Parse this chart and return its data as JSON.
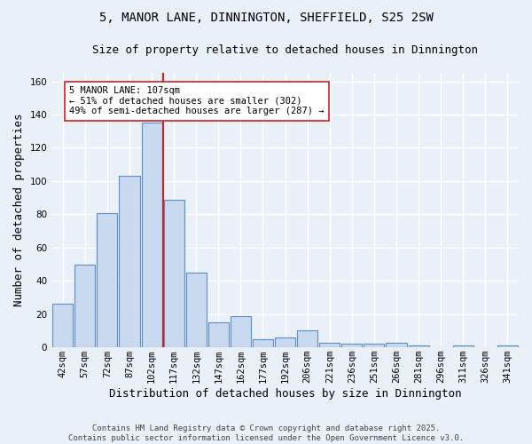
{
  "title_line1": "5, MANOR LANE, DINNINGTON, SHEFFIELD, S25 2SW",
  "title_line2": "Size of property relative to detached houses in Dinnington",
  "xlabel": "Distribution of detached houses by size in Dinnington",
  "ylabel": "Number of detached properties",
  "categories": [
    "42sqm",
    "57sqm",
    "72sqm",
    "87sqm",
    "102sqm",
    "117sqm",
    "132sqm",
    "147sqm",
    "162sqm",
    "177sqm",
    "192sqm",
    "206sqm",
    "221sqm",
    "236sqm",
    "251sqm",
    "266sqm",
    "281sqm",
    "296sqm",
    "311sqm",
    "326sqm",
    "341sqm"
  ],
  "values": [
    26,
    50,
    81,
    103,
    135,
    89,
    45,
    15,
    19,
    5,
    6,
    10,
    3,
    2,
    2,
    3,
    1,
    0,
    1,
    0,
    1
  ],
  "bar_color": "#c9d9ef",
  "bar_edge_color": "#5b8ec4",
  "background_color": "#eaf0f8",
  "grid_color": "#ffffff",
  "property_line_x": 4.5,
  "property_line_color": "#cc2222",
  "annotation_text": "5 MANOR LANE: 107sqm\n← 51% of detached houses are smaller (302)\n49% of semi-detached houses are larger (287) →",
  "annotation_box_color": "#ffffff",
  "annotation_box_edge": "#cc2222",
  "footer_line1": "Contains HM Land Registry data © Crown copyright and database right 2025.",
  "footer_line2": "Contains public sector information licensed under the Open Government Licence v3.0.",
  "ylim": [
    0,
    165
  ],
  "yticks": [
    0,
    20,
    40,
    60,
    80,
    100,
    120,
    140,
    160
  ],
  "title_fontsize": 10,
  "subtitle_fontsize": 9,
  "tick_fontsize": 7.5,
  "label_fontsize": 9,
  "footer_fontsize": 6.5
}
